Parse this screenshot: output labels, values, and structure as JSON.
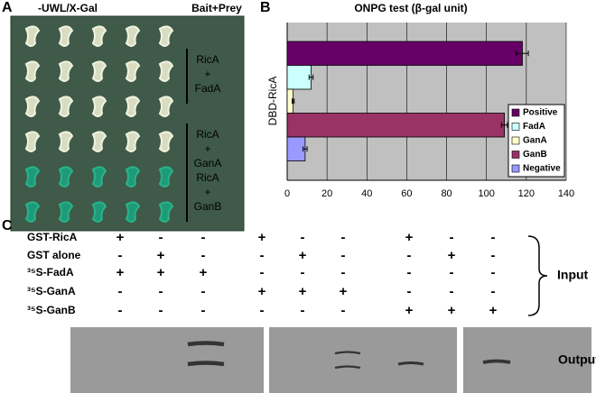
{
  "panel_a": {
    "label": "A",
    "title": "-UWL/X-Gal",
    "column_title": "Bait+Prey",
    "groups": [
      [
        "RicA",
        "+",
        "FadA"
      ],
      [
        "RicA",
        "+",
        "GanA"
      ],
      [
        "RicA",
        "+",
        "GanB"
      ]
    ]
  },
  "chart_data": {
    "type": "bar",
    "orientation": "horizontal",
    "panel_label": "B",
    "title": "ONPG test (β-gal unit)",
    "y_label": "DBD-RicA",
    "series": [
      {
        "name": "Positive",
        "color": "#660066",
        "values": [
          118
        ],
        "errors": [
          3
        ]
      },
      {
        "name": "FadA",
        "color": "#ccffff",
        "values": [
          12
        ],
        "errors": [
          1
        ]
      },
      {
        "name": "GanA",
        "color": "#ffffcc",
        "values": [
          3
        ],
        "errors": [
          0.5
        ]
      },
      {
        "name": "GanB",
        "color": "#993366",
        "values": [
          109
        ],
        "errors": [
          1.5
        ]
      },
      {
        "name": "Negative",
        "color": "#9999ff",
        "values": [
          9
        ],
        "errors": [
          1
        ]
      }
    ],
    "xlim": [
      0,
      140
    ],
    "xticks": [
      0,
      20,
      40,
      60,
      80,
      100,
      120,
      140
    ],
    "grid": true,
    "legend": "lower right"
  },
  "panel_c": {
    "label": "C",
    "rows": [
      {
        "label": "GST-RicA",
        "marks": [
          "+",
          "-",
          "-",
          "+",
          "-",
          "-",
          "+",
          "-",
          "-"
        ]
      },
      {
        "label": "GST alone",
        "marks": [
          "-",
          "+",
          "-",
          "-",
          "+",
          "-",
          "-",
          "+",
          "-"
        ]
      },
      {
        "label": "³⁵S-FadA",
        "marks": [
          "+",
          "+",
          "+",
          "-",
          "-",
          "-",
          "-",
          "-",
          "-"
        ]
      },
      {
        "label": "³⁵S-GanA",
        "marks": [
          "-",
          "-",
          "-",
          "+",
          "+",
          "+",
          "-",
          "-",
          "-"
        ]
      },
      {
        "label": "³⁵S-GanB",
        "marks": [
          "-",
          "-",
          "-",
          "-",
          "-",
          "-",
          "+",
          "+",
          "+"
        ]
      }
    ],
    "input_label": "Input",
    "output_label": "Output"
  }
}
